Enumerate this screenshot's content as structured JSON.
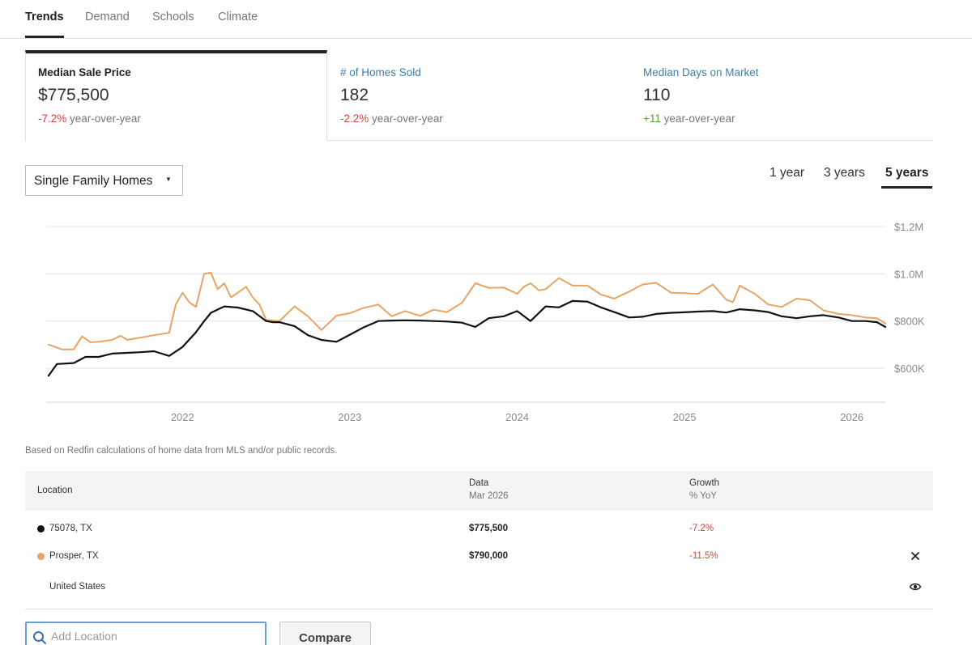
{
  "tabs": [
    {
      "label": "Trends",
      "active": true
    },
    {
      "label": "Demand",
      "active": false
    },
    {
      "label": "Schools",
      "active": false
    },
    {
      "label": "Climate",
      "active": false
    }
  ],
  "stats": [
    {
      "title": "Median Sale Price",
      "value": "$775,500",
      "change": "-7.2%",
      "change_suffix": "year-over-year",
      "active": true
    },
    {
      "title": "# of Homes Sold",
      "value": "182",
      "change": "-2.2%",
      "change_suffix": "year-over-year",
      "active": false
    },
    {
      "title": "Median Days on Market",
      "value": "110",
      "change": "+11",
      "change_suffix": "year-over-year",
      "active": false
    }
  ],
  "filter": {
    "selected": "Single Family Homes"
  },
  "ranges": [
    {
      "label": "1 year",
      "active": false
    },
    {
      "label": "3 years",
      "active": false
    },
    {
      "label": "5 years",
      "active": true
    }
  ],
  "chart_data": {
    "type": "line",
    "title": "",
    "xlabel": "",
    "ylabel": "",
    "x_ticks": [
      "2022",
      "2023",
      "2024",
      "2025",
      "2026"
    ],
    "y_ticks": [
      "$600K",
      "$800K",
      "$1.0M",
      "$1.2M"
    ],
    "ylim": [
      456000,
      1200000
    ],
    "xlim": [
      2021.2,
      2026.2
    ],
    "grid": true,
    "series": [
      {
        "name": "75078, TX",
        "color": "#111111",
        "x": [
          2021.2,
          2021.25,
          2021.35,
          2021.42,
          2021.5,
          2021.58,
          2021.67,
          2021.75,
          2021.83,
          2021.92,
          2022.0,
          2022.08,
          2022.13,
          2022.17,
          2022.25,
          2022.33,
          2022.42,
          2022.5,
          2022.54,
          2022.58,
          2022.67,
          2022.75,
          2022.83,
          2022.92,
          2023.0,
          2023.08,
          2023.17,
          2023.25,
          2023.33,
          2023.42,
          2023.5,
          2023.58,
          2023.67,
          2023.75,
          2023.83,
          2023.92,
          2024.0,
          2024.08,
          2024.17,
          2024.25,
          2024.33,
          2024.42,
          2024.5,
          2024.58,
          2024.67,
          2024.75,
          2024.83,
          2024.92,
          2025.0,
          2025.08,
          2025.17,
          2025.25,
          2025.33,
          2025.42,
          2025.5,
          2025.58,
          2025.67,
          2025.75,
          2025.83,
          2025.92,
          2026.0,
          2026.08,
          2026.15,
          2026.2
        ],
        "y": [
          568000,
          618000,
          622000,
          648000,
          648000,
          662000,
          665000,
          668000,
          672000,
          652000,
          690000,
          752000,
          800000,
          835000,
          862000,
          857000,
          842000,
          800000,
          795000,
          795000,
          778000,
          740000,
          720000,
          712000,
          742000,
          772000,
          800000,
          802000,
          803000,
          802000,
          800000,
          798000,
          793000,
          775000,
          812000,
          820000,
          842000,
          800000,
          862000,
          858000,
          885000,
          882000,
          858000,
          838000,
          815000,
          818000,
          830000,
          835000,
          837000,
          840000,
          842000,
          836000,
          850000,
          845000,
          838000,
          820000,
          812000,
          820000,
          825000,
          815000,
          800000,
          800000,
          795000,
          775000
        ]
      },
      {
        "name": "Prosper, TX",
        "color": "#e8a466",
        "x": [
          2021.2,
          2021.28,
          2021.35,
          2021.4,
          2021.45,
          2021.5,
          2021.58,
          2021.63,
          2021.67,
          2021.75,
          2021.83,
          2021.92,
          2021.96,
          2022.0,
          2022.04,
          2022.08,
          2022.13,
          2022.17,
          2022.21,
          2022.25,
          2022.29,
          2022.33,
          2022.38,
          2022.42,
          2022.46,
          2022.5,
          2022.58,
          2022.67,
          2022.75,
          2022.83,
          2022.92,
          2023.0,
          2023.08,
          2023.17,
          2023.25,
          2023.33,
          2023.42,
          2023.5,
          2023.58,
          2023.67,
          2023.75,
          2023.83,
          2023.92,
          2024.0,
          2024.04,
          2024.08,
          2024.13,
          2024.17,
          2024.25,
          2024.33,
          2024.42,
          2024.5,
          2024.58,
          2024.67,
          2024.75,
          2024.83,
          2024.92,
          2025.0,
          2025.08,
          2025.17,
          2025.25,
          2025.29,
          2025.33,
          2025.42,
          2025.5,
          2025.58,
          2025.67,
          2025.75,
          2025.83,
          2025.92,
          2026.0,
          2026.08,
          2026.15,
          2026.2
        ],
        "y": [
          700000,
          680000,
          680000,
          735000,
          710000,
          712000,
          720000,
          738000,
          720000,
          730000,
          740000,
          750000,
          870000,
          920000,
          880000,
          860000,
          1000000,
          1005000,
          935000,
          960000,
          900000,
          920000,
          945000,
          900000,
          870000,
          805000,
          800000,
          862000,
          820000,
          762000,
          823000,
          833000,
          855000,
          870000,
          820000,
          842000,
          822000,
          848000,
          838000,
          877000,
          960000,
          940000,
          942000,
          915000,
          945000,
          960000,
          930000,
          935000,
          982000,
          950000,
          950000,
          912000,
          895000,
          925000,
          955000,
          962000,
          920000,
          918000,
          915000,
          955000,
          890000,
          880000,
          950000,
          915000,
          870000,
          860000,
          895000,
          888000,
          845000,
          830000,
          825000,
          815000,
          812000,
          790000
        ]
      }
    ]
  },
  "note": "Based on Redfin calculations of home data from MLS and/or public records.",
  "table": {
    "headers": {
      "location": "Location",
      "data": "Data",
      "data_sub": "Mar 2026",
      "growth": "Growth",
      "growth_sub": "% YoY"
    },
    "rows": [
      {
        "location": "75078, TX",
        "dot_color": "#111111",
        "value": "$775,500",
        "growth": "-7.2%",
        "icon": ""
      },
      {
        "location": "Prosper, TX",
        "dot_color": "#e8a466",
        "value": "$790,000",
        "growth": "-11.5%",
        "icon": "close-icon"
      },
      {
        "location": "United States",
        "dot_color": "",
        "value": "",
        "growth": "",
        "icon": "eye-icon"
      }
    ]
  },
  "add_location": {
    "placeholder": "Add Location",
    "value": ""
  },
  "compare_label": "Compare"
}
